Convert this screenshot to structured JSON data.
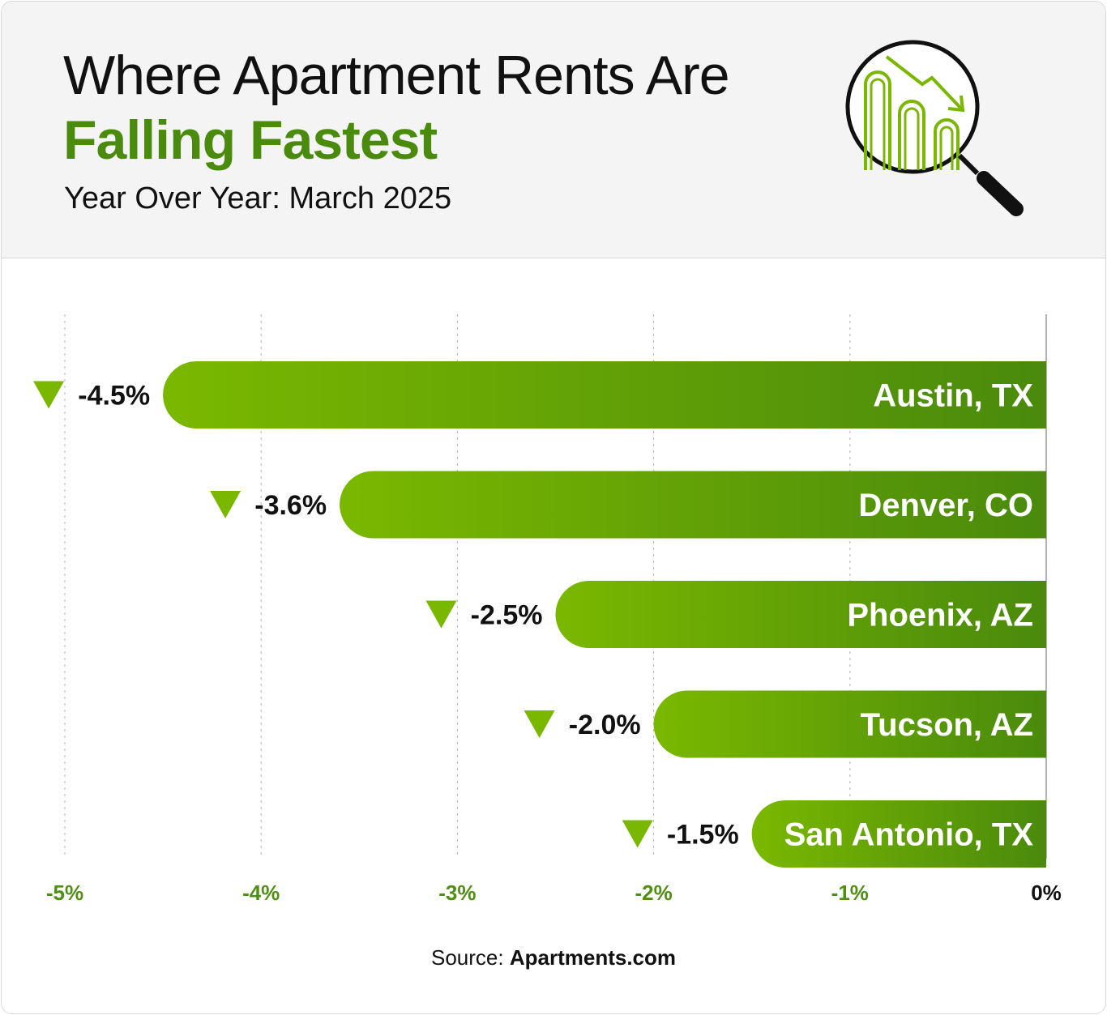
{
  "header": {
    "title_line1": "Where Apartment Rents Are",
    "title_line2": "Falling Fastest",
    "subtitle": "Year Over Year: March 2025"
  },
  "source": {
    "label": "Source:",
    "name": "Apartments.com"
  },
  "colors": {
    "accent": "#4a8a0c",
    "bar_light": "#7ab800",
    "bar_dark": "#4a8a0c",
    "tick_green": "#4f8f12",
    "text_dark": "#111111"
  },
  "chart_data": {
    "type": "bar",
    "orientation": "horizontal",
    "title": "Where Apartment Rents Are Falling Fastest",
    "subtitle": "Year Over Year: March 2025",
    "categories": [
      "Austin, TX",
      "Denver, CO",
      "Phoenix, AZ",
      "Tucson, AZ",
      "San Antonio, TX"
    ],
    "values": [
      -4.5,
      -3.6,
      -2.5,
      -2.0,
      -1.5
    ],
    "value_labels": [
      "-4.5%",
      "-3.6%",
      "-2.5%",
      "-2.0%",
      "-1.5%"
    ],
    "xlim": [
      -5,
      0
    ],
    "xticks": [
      -5,
      -4,
      -3,
      -2,
      -1,
      0
    ],
    "xtick_labels": [
      "-5%",
      "-4%",
      "-3%",
      "-2%",
      "-1%",
      "0%"
    ],
    "grid": true,
    "xlabel": "",
    "ylabel": ""
  }
}
